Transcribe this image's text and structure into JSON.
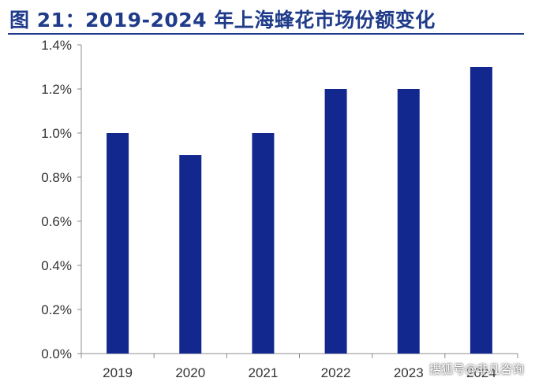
{
  "figure": {
    "title": "图 21：2019-2024 年上海蜂花市场份额变化"
  },
  "watermark": "搜狐号@非凡咨询",
  "colors": {
    "bar": "#12288f",
    "axis": "#8c8c8c",
    "title": "#1f3b8a",
    "text": "#333333"
  },
  "chart_data": {
    "type": "bar",
    "categories": [
      "2019",
      "2020",
      "2021",
      "2022",
      "2023",
      "2024"
    ],
    "values": [
      1.0,
      0.9,
      1.0,
      1.2,
      1.2,
      1.3
    ],
    "ylim": [
      0,
      1.4
    ],
    "yticks": [
      "0.0%",
      "0.2%",
      "0.4%",
      "0.6%",
      "0.8%",
      "1.0%",
      "1.2%",
      "1.4%"
    ],
    "grid": false,
    "legend": "none"
  }
}
